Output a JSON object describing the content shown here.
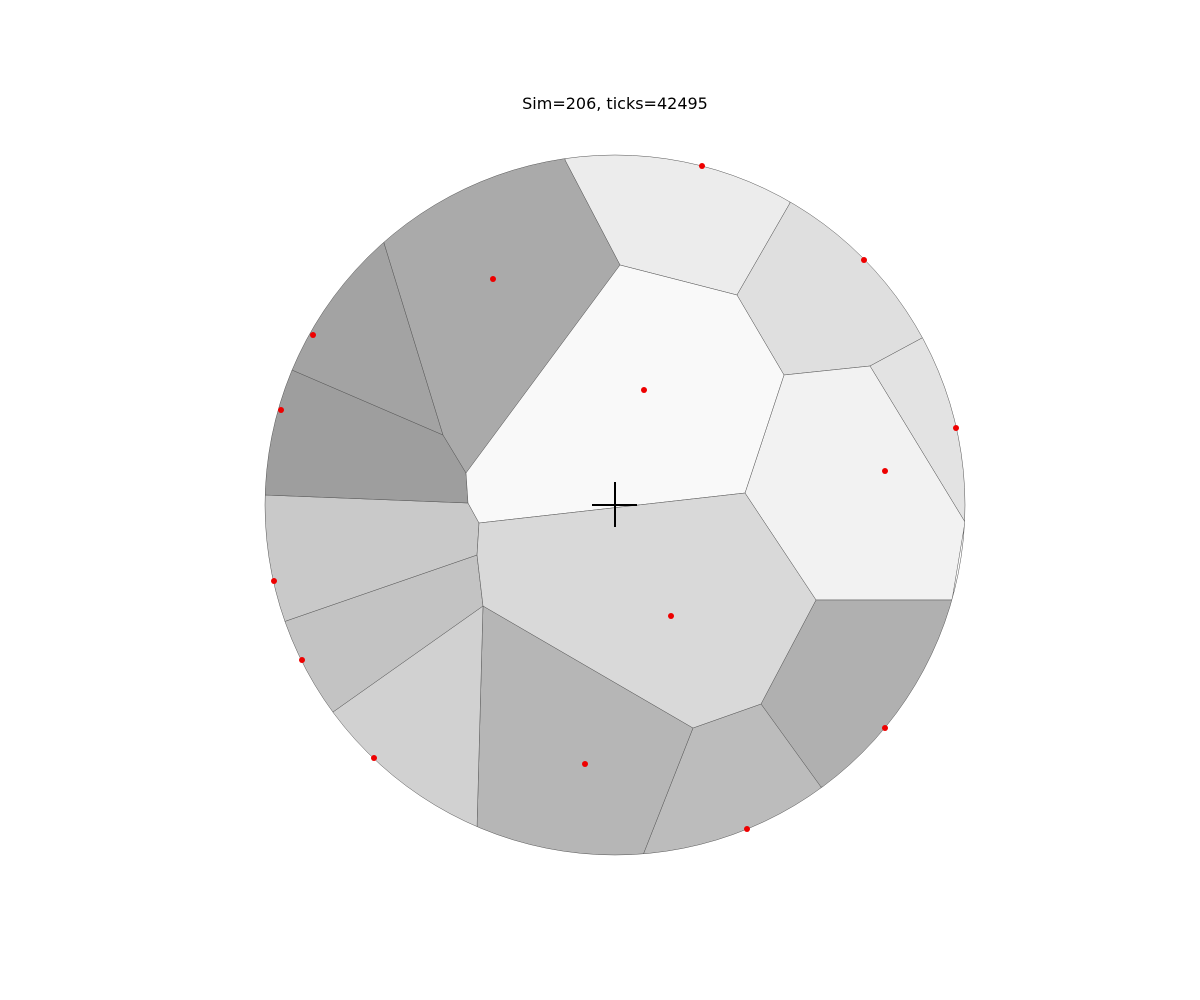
{
  "title": "Sim=206, ticks=42495",
  "colors": {
    "background": "#ffffff",
    "cell_border": "#555555",
    "site": "#ee0000",
    "crosshair": "#000000"
  },
  "markers": {
    "crosshair": "plus-marker",
    "site": "red-dot"
  },
  "cells": [
    {
      "id": "top-center",
      "shade": "#ececec"
    },
    {
      "id": "top-right",
      "shade": "#dfdfdf"
    },
    {
      "id": "right-edge",
      "shade": "#e3e3e3"
    },
    {
      "id": "right",
      "shade": "#f2f2f2"
    },
    {
      "id": "lower-right",
      "shade": "#b0b0b0"
    },
    {
      "id": "bottom-right",
      "shade": "#bcbcbc"
    },
    {
      "id": "bottom-center",
      "shade": "#b6b6b6"
    },
    {
      "id": "lower-left",
      "shade": "#d1d1d1"
    },
    {
      "id": "left-lower",
      "shade": "#c3c3c3"
    },
    {
      "id": "left",
      "shade": "#c9c9c9"
    },
    {
      "id": "left-upper",
      "shade": "#9e9e9e"
    },
    {
      "id": "upper-left",
      "shade": "#a3a3a3"
    },
    {
      "id": "top-left",
      "shade": "#aaaaaa"
    },
    {
      "id": "center",
      "shade": "#f9f9f9"
    },
    {
      "id": "middle",
      "shade": "#d9d9d9"
    }
  ]
}
